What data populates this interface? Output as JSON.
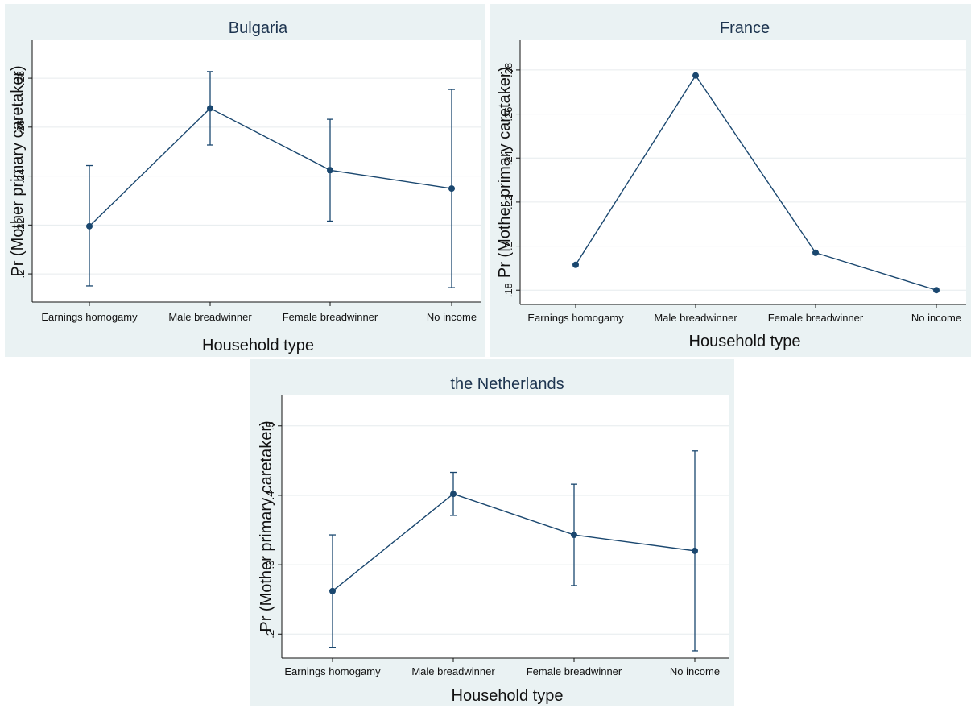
{
  "chart_data": [
    {
      "type": "line",
      "title": "Bulgaria",
      "xlabel": "Household type",
      "ylabel": "Pr (Mother primary caretaker)",
      "categories": [
        "Earnings homogamy",
        "Male breadwinner",
        "Female breadwinner",
        "No income"
      ],
      "values": [
        0.2195,
        0.2677,
        0.2424,
        0.2349
      ],
      "ci_lower": [
        0.1951,
        0.2527,
        0.2216,
        0.1944
      ],
      "ci_upper": [
        0.2443,
        0.2827,
        0.2632,
        0.2754
      ],
      "yticks": [
        0.2,
        0.22,
        0.24,
        0.26,
        0.28
      ],
      "ytick_labels": [
        ".2",
        ".22",
        ".24",
        ".26",
        ".28"
      ],
      "ylim": [
        0.1885,
        0.2955
      ],
      "grid": true,
      "color": "#1a476f"
    },
    {
      "type": "line",
      "title": "France",
      "xlabel": "Household type",
      "ylabel": "Pr (Mother primary caretaker)",
      "categories": [
        "Earnings homogamy",
        "Male breadwinner",
        "Female breadwinner",
        "No income"
      ],
      "values": [
        0.1915,
        0.2775,
        0.197,
        0.18
      ],
      "ci_lower": [
        0.1915,
        0.2775,
        0.197,
        0.18
      ],
      "ci_upper": [
        0.1915,
        0.2775,
        0.197,
        0.18
      ],
      "yticks": [
        0.18,
        0.2,
        0.22,
        0.24,
        0.26,
        0.28
      ],
      "ytick_labels": [
        ".18",
        ".2",
        ".22",
        ".24",
        ".26",
        ".28"
      ],
      "ylim": [
        0.1735,
        0.2935
      ],
      "grid": true,
      "color": "#1a476f"
    },
    {
      "type": "line",
      "title": "the Netherlands",
      "xlabel": "Household type",
      "ylabel": "Pr (Mother primary caretaker)",
      "categories": [
        "Earnings homogamy",
        "Male breadwinner",
        "Female breadwinner",
        "No income"
      ],
      "values": [
        0.262,
        0.402,
        0.343,
        0.32
      ],
      "ci_lower": [
        0.181,
        0.371,
        0.27,
        0.176
      ],
      "ci_upper": [
        0.343,
        0.433,
        0.416,
        0.464
      ],
      "yticks": [
        0.2,
        0.3,
        0.4,
        0.5
      ],
      "ytick_labels": [
        ".2",
        ".3",
        ".4",
        ".5"
      ],
      "ylim": [
        0.1655,
        0.545
      ],
      "grid": true,
      "color": "#1a476f"
    }
  ]
}
